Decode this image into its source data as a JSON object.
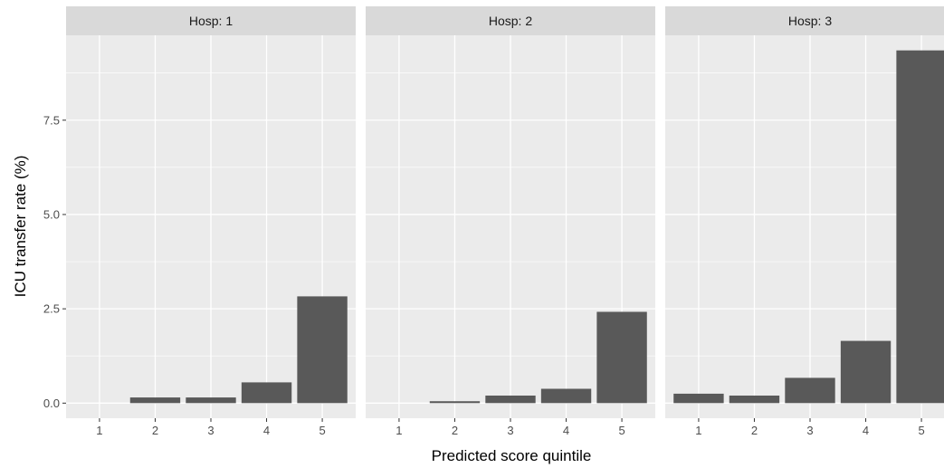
{
  "chart_data": {
    "type": "bar",
    "xlabel": "Predicted score quintile",
    "ylabel": "ICU transfer rate (%)",
    "ylim": [
      -0.4,
      9.75
    ],
    "yticks": [
      0.0,
      2.5,
      5.0,
      7.5
    ],
    "ytick_labels": [
      "0.0",
      "2.5",
      "5.0",
      "7.5"
    ],
    "categories": [
      "1",
      "2",
      "3",
      "4",
      "5"
    ],
    "grid": true,
    "colors": {
      "bar": "#595959",
      "panel_bg": "#ebebeb",
      "strip_bg": "#d9d9d9",
      "grid": "#ffffff"
    },
    "panels": [
      {
        "label": "Hosp: 1",
        "values": [
          0.0,
          0.15,
          0.15,
          0.55,
          2.83
        ]
      },
      {
        "label": "Hosp: 2",
        "values": [
          0.0,
          0.05,
          0.2,
          0.38,
          2.42
        ]
      },
      {
        "label": "Hosp: 3",
        "values": [
          0.25,
          0.2,
          0.67,
          1.65,
          9.35
        ]
      }
    ]
  }
}
